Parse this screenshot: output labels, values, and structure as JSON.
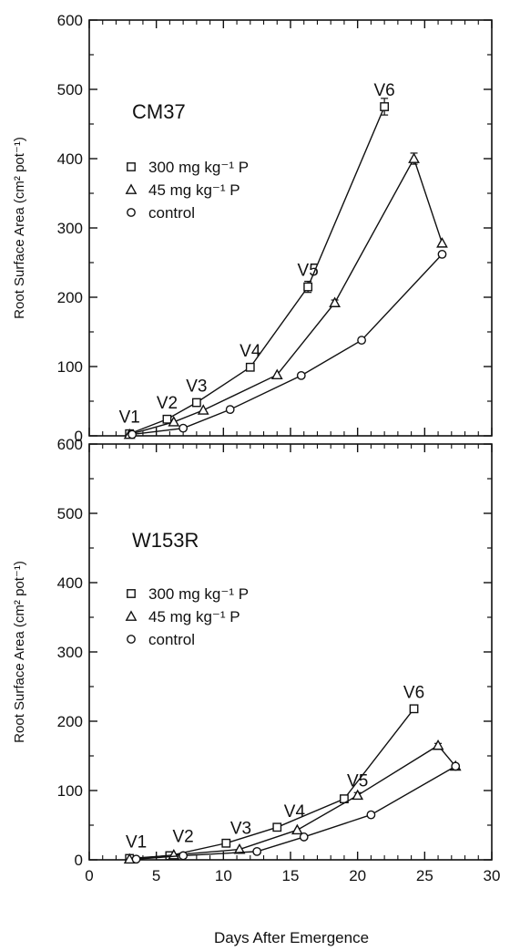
{
  "xlabel": "Days After Emergence",
  "chart_data": [
    {
      "type": "line",
      "title": "CM37",
      "xlabel": "Days After Emergence",
      "ylabel": "Root Surface Area (cm² pot⁻¹)",
      "xlim": [
        0,
        30
      ],
      "ylim": [
        0,
        600
      ],
      "x_ticks": [
        0,
        5,
        10,
        15,
        20,
        25,
        30
      ],
      "y_ticks": [
        0,
        100,
        200,
        300,
        400,
        500,
        600
      ],
      "grid": false,
      "legend_position": "upper-left",
      "series": [
        {
          "name": "300 mg kg⁻¹ P",
          "marker": "square",
          "points": [
            [
              3,
              3
            ],
            [
              5.8,
              24
            ],
            [
              8,
              48
            ],
            [
              12,
              99
            ],
            [
              16.3,
              215
            ],
            [
              22,
              475
            ]
          ],
          "errors": [
            0,
            0,
            2,
            0,
            8,
            12
          ]
        },
        {
          "name": "45 mg kg⁻¹ P",
          "marker": "triangle",
          "points": [
            [
              3,
              2
            ],
            [
              6.3,
              20
            ],
            [
              8.5,
              37
            ],
            [
              14,
              88
            ],
            [
              18.3,
              192
            ],
            [
              24.2,
              400
            ],
            [
              26.3,
              278
            ]
          ],
          "errors": [
            0,
            0,
            0,
            0,
            4,
            8,
            0
          ]
        },
        {
          "name": "control",
          "marker": "circle",
          "points": [
            [
              3.2,
              2
            ],
            [
              7,
              11
            ],
            [
              10.5,
              38
            ],
            [
              15.8,
              87
            ],
            [
              20.3,
              138
            ],
            [
              26.3,
              262
            ]
          ],
          "errors": [
            0,
            0,
            0,
            0,
            0,
            0
          ]
        }
      ],
      "stage_labels": [
        {
          "text": "V1",
          "x": 3,
          "y": 3
        },
        {
          "text": "V2",
          "x": 5.8,
          "y": 24
        },
        {
          "text": "V3",
          "x": 8,
          "y": 48
        },
        {
          "text": "V4",
          "x": 12,
          "y": 99
        },
        {
          "text": "V5",
          "x": 16.3,
          "y": 215
        },
        {
          "text": "V6",
          "x": 22,
          "y": 475
        }
      ]
    },
    {
      "type": "line",
      "title": "W153R",
      "xlabel": "Days After Emergence",
      "ylabel": "Root Surface Area (cm² pot⁻¹)",
      "xlim": [
        0,
        30
      ],
      "ylim": [
        0,
        600
      ],
      "x_ticks": [
        0,
        5,
        10,
        15,
        20,
        25,
        30
      ],
      "y_ticks": [
        0,
        100,
        200,
        300,
        400,
        500,
        600
      ],
      "grid": false,
      "legend_position": "upper-left",
      "series": [
        {
          "name": "300 mg kg⁻¹ P",
          "marker": "square",
          "points": [
            [
              3,
              2
            ],
            [
              6,
              6
            ],
            [
              10.2,
              24
            ],
            [
              14,
              47
            ],
            [
              19,
              88
            ],
            [
              24.2,
              218
            ]
          ],
          "errors": [
            0,
            0,
            0,
            0,
            3,
            3
          ]
        },
        {
          "name": "45 mg kg⁻¹ P",
          "marker": "triangle",
          "points": [
            [
              3,
              1
            ],
            [
              6.3,
              7
            ],
            [
              11.2,
              15
            ],
            [
              15.5,
              43
            ],
            [
              20,
              93
            ],
            [
              26,
              165
            ],
            [
              27.3,
              135
            ]
          ],
          "errors": [
            0,
            0,
            0,
            0,
            4,
            3,
            0
          ]
        },
        {
          "name": "control",
          "marker": "circle",
          "points": [
            [
              3.5,
              1
            ],
            [
              7,
              6
            ],
            [
              12.5,
              12
            ],
            [
              16,
              33
            ],
            [
              21,
              65
            ],
            [
              27.3,
              135
            ]
          ],
          "errors": [
            0,
            0,
            0,
            0,
            0,
            3
          ]
        }
      ],
      "stage_labels": [
        {
          "text": "V1",
          "x": 3.5,
          "y": 2
        },
        {
          "text": "V2",
          "x": 7,
          "y": 10
        },
        {
          "text": "V3",
          "x": 11.3,
          "y": 22
        },
        {
          "text": "V4",
          "x": 15.3,
          "y": 46
        },
        {
          "text": "V5",
          "x": 20,
          "y": 90
        },
        {
          "text": "V6",
          "x": 24.2,
          "y": 218
        }
      ]
    }
  ]
}
